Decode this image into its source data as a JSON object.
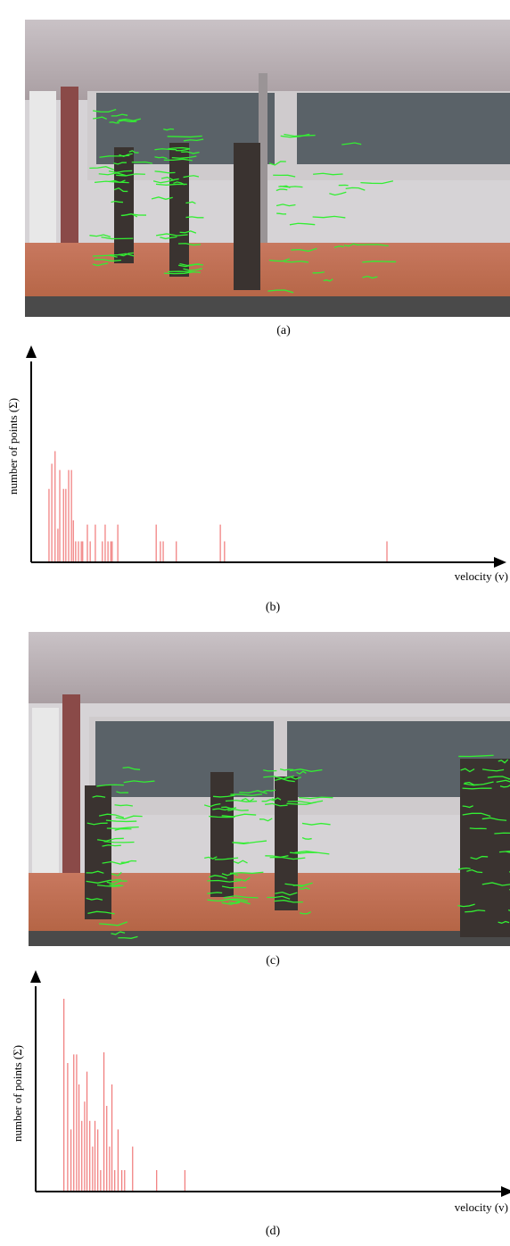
{
  "captions": [
    "(a)",
    "(b)",
    "(c)",
    "(d)"
  ],
  "chart_data": [
    {
      "type": "bar",
      "x_label": "velocity (v)",
      "y_label": "number of points (Σ)",
      "color": "#f07878",
      "xlim": [
        0,
        100
      ],
      "ylim": [
        0,
        100
      ],
      "x": [
        3.8,
        4.4,
        5.1,
        5.7,
        6.1,
        6.9,
        7.4,
        8.0,
        8.6,
        9.0,
        9.5,
        10.1,
        10.7,
        11.0,
        12.0,
        12.6,
        13.7,
        15.2,
        15.8,
        16.4,
        17.0,
        17.3,
        18.5,
        26.7,
        27.6,
        28.2,
        31.0,
        40.4,
        41.3,
        76.0
      ],
      "values": [
        35,
        47,
        53,
        16,
        44,
        35,
        35,
        44,
        44,
        20,
        10,
        10,
        10,
        10,
        18,
        10,
        18,
        10,
        18,
        10,
        10,
        10,
        18,
        18,
        10,
        10,
        10,
        18,
        10,
        10
      ]
    },
    {
      "type": "bar",
      "x_label": "velocity (v)",
      "y_label": "number of points (Σ)",
      "color": "#f07878",
      "xlim": [
        0,
        100
      ],
      "ylim": [
        0,
        100
      ],
      "x": [
        6.0,
        6.8,
        7.5,
        8.1,
        8.7,
        9.2,
        9.8,
        10.4,
        10.9,
        11.5,
        12.1,
        12.6,
        13.2,
        13.8,
        14.5,
        15.1,
        15.7,
        16.2,
        16.8,
        17.5,
        18.3,
        18.9,
        20.6,
        25.7,
        31.7
      ],
      "values": [
        90,
        60,
        29,
        64,
        64,
        50,
        33,
        42,
        56,
        33,
        21,
        33,
        29,
        10,
        65,
        40,
        21,
        50,
        10,
        29,
        10,
        10,
        21,
        10,
        10
      ]
    }
  ]
}
